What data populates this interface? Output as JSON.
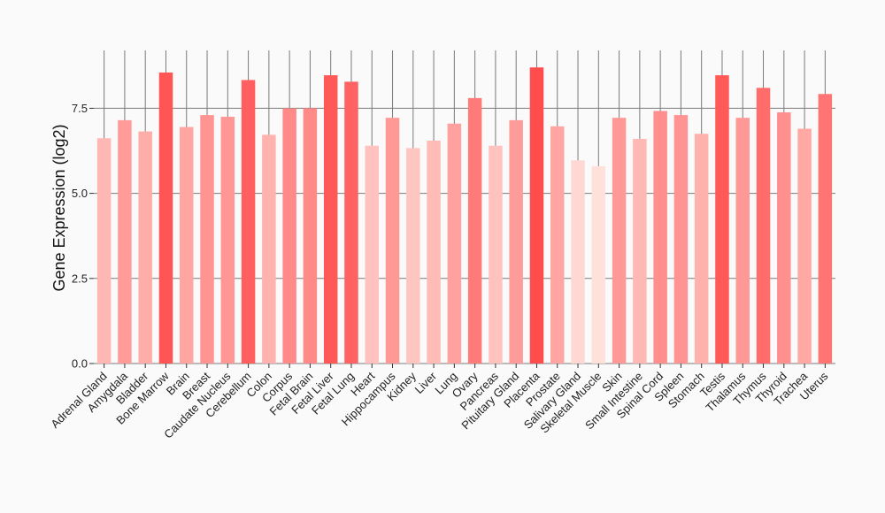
{
  "chart_data": {
    "type": "bar",
    "title": "",
    "xlabel": "",
    "ylabel": "Gene Expression (log2)",
    "ylim": [
      0,
      9.2
    ],
    "yticks": [
      0.0,
      2.5,
      5.0,
      7.5
    ],
    "ytick_labels": [
      "0.0",
      "2.5",
      "5.0",
      "7.5"
    ],
    "grid": true,
    "legend": "none",
    "color_range": [
      "#ffe1db",
      "#ff4d4d"
    ],
    "categories": [
      "Adrenal Gland",
      "Amygdala",
      "Bladder",
      "Bone Marrow",
      "Brain",
      "Breast",
      "Caudate Nucleus",
      "Cerebellum",
      "Colon",
      "Corpus",
      "Fetal Brain",
      "Fetal Liver",
      "Fetal Lung",
      "Heart",
      "Hippocampus",
      "Kidney",
      "Liver",
      "Lung",
      "Ovary",
      "Pancreas",
      "Pituitary Gland",
      "Placenta",
      "Prostate",
      "Salivary Gland",
      "Skeletal Muscle",
      "Skin",
      "Small Intestine",
      "Spinal Cord",
      "Spleen",
      "Stomach",
      "Testis",
      "Thalamus",
      "Thymus",
      "Thyroid",
      "Trachea",
      "Uterus"
    ],
    "values": [
      6.62,
      7.15,
      6.82,
      8.55,
      6.95,
      7.3,
      7.25,
      8.33,
      6.72,
      7.5,
      7.5,
      8.47,
      8.28,
      6.4,
      7.22,
      6.33,
      6.55,
      7.05,
      7.8,
      6.4,
      7.15,
      8.7,
      6.97,
      5.97,
      5.8,
      7.22,
      6.6,
      7.42,
      7.3,
      6.75,
      8.47,
      7.22,
      8.1,
      7.38,
      6.9,
      7.92
    ]
  }
}
